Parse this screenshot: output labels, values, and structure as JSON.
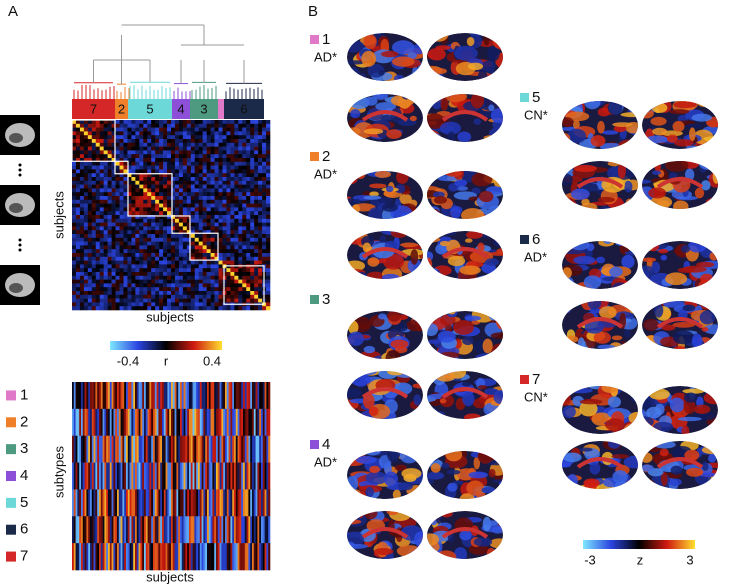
{
  "panel_a": {
    "label": "A",
    "dendrogram_order": [
      "7",
      "2",
      "5",
      "4",
      "3",
      "6"
    ],
    "matrix_ylabel": "subjects",
    "matrix_xlabel": "subjects",
    "colorbar": {
      "min_label": "-0.4",
      "center_label": "r",
      "max_label": "0.4"
    },
    "weights_ylabel": "subtypes",
    "weights_xlabel": "subjects"
  },
  "panel_b": {
    "label": "B",
    "subtypes": [
      {
        "number": "1",
        "group": "AD*",
        "color": "#e07ac8"
      },
      {
        "number": "2",
        "group": "AD*",
        "color": "#f07f2a"
      },
      {
        "number": "3",
        "color": "#4e9a80"
      },
      {
        "number": "4",
        "group": "AD*",
        "color": "#8d4fd8"
      },
      {
        "number": "5",
        "group": "CN*",
        "color": "#6cd8d8"
      },
      {
        "number": "6",
        "group": "AD*",
        "color": "#1c2a4a"
      },
      {
        "number": "7",
        "group": "CN*",
        "color": "#d62728"
      }
    ],
    "colorbar": {
      "min_label": "-3",
      "center_label": "z",
      "max_label": "3"
    }
  }
}
